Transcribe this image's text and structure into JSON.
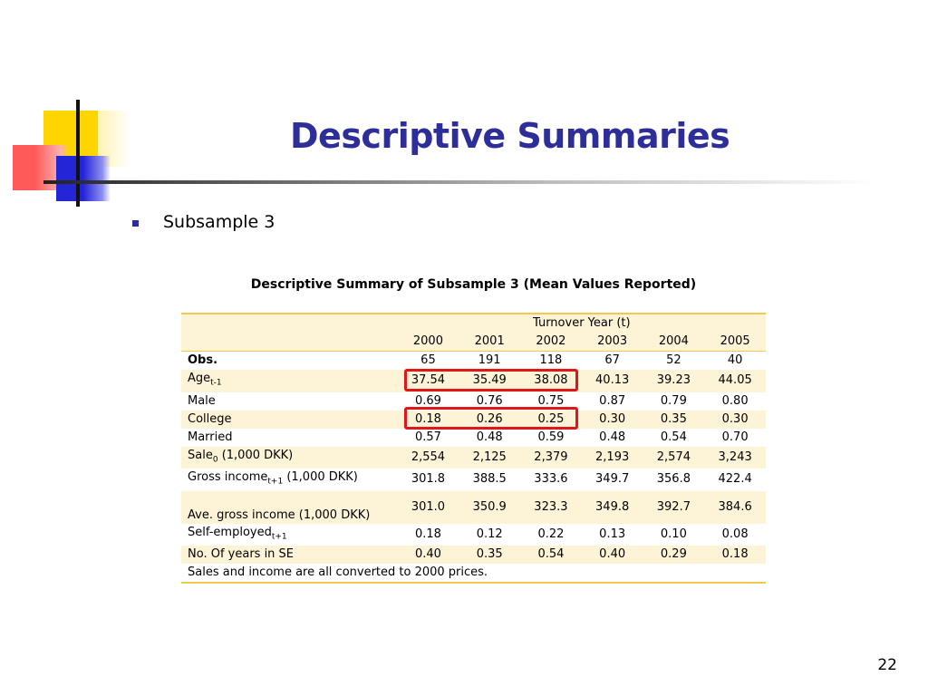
{
  "slide": {
    "title": "Descriptive Summaries",
    "bullet": "Subsample 3",
    "page_number": "22"
  },
  "table": {
    "caption": "Descriptive Summary of Subsample 3 (Mean Values Reported)",
    "group_header": "Turnover Year (t)",
    "years": [
      "2000",
      "2001",
      "2002",
      "2003",
      "2004",
      "2005"
    ],
    "rows": [
      {
        "label": "Obs.",
        "values": [
          "65",
          "191",
          "118",
          "67",
          "52",
          "40"
        ]
      },
      {
        "label": "Age",
        "sub": "t-1",
        "values": [
          "37.54",
          "35.49",
          "38.08",
          "40.13",
          "39.23",
          "44.05"
        ]
      },
      {
        "label": "Male",
        "values": [
          "0.69",
          "0.76",
          "0.75",
          "0.87",
          "0.79",
          "0.80"
        ]
      },
      {
        "label": "College",
        "values": [
          "0.18",
          "0.26",
          "0.25",
          "0.30",
          "0.35",
          "0.30"
        ]
      },
      {
        "label": "Married",
        "values": [
          "0.57",
          "0.48",
          "0.59",
          "0.48",
          "0.54",
          "0.70"
        ]
      },
      {
        "label": "Sale",
        "sub": "0",
        "suffix": " (1,000 DKK)",
        "values": [
          "2,554",
          "2,125",
          "2,379",
          "2,193",
          "2,574",
          "3,243"
        ]
      },
      {
        "label": "Gross income",
        "sub": "t+1",
        "suffix": " (1,000 DKK)",
        "values": [
          "301.8",
          "388.5",
          "333.6",
          "349.7",
          "356.8",
          "422.4"
        ]
      },
      {
        "label": "Ave. gross income (1,000 DKK)",
        "values": [
          "301.0",
          "350.9",
          "323.3",
          "349.8",
          "392.7",
          "384.6"
        ]
      },
      {
        "label": "Self-employed",
        "sub": "t+1",
        "values": [
          "0.18",
          "0.12",
          "0.22",
          "0.13",
          "0.10",
          "0.08"
        ]
      },
      {
        "label": "No. Of years in SE",
        "values": [
          "0.40",
          "0.35",
          "0.54",
          "0.40",
          "0.29",
          "0.18"
        ]
      }
    ],
    "footnote": "Sales and income are all converted to 2000 prices."
  },
  "colors": {
    "title": "#2e2e9a",
    "highlight_box": "#e0161b",
    "table_border": "#f2c94c",
    "row_shade": "#fdf4d8"
  }
}
